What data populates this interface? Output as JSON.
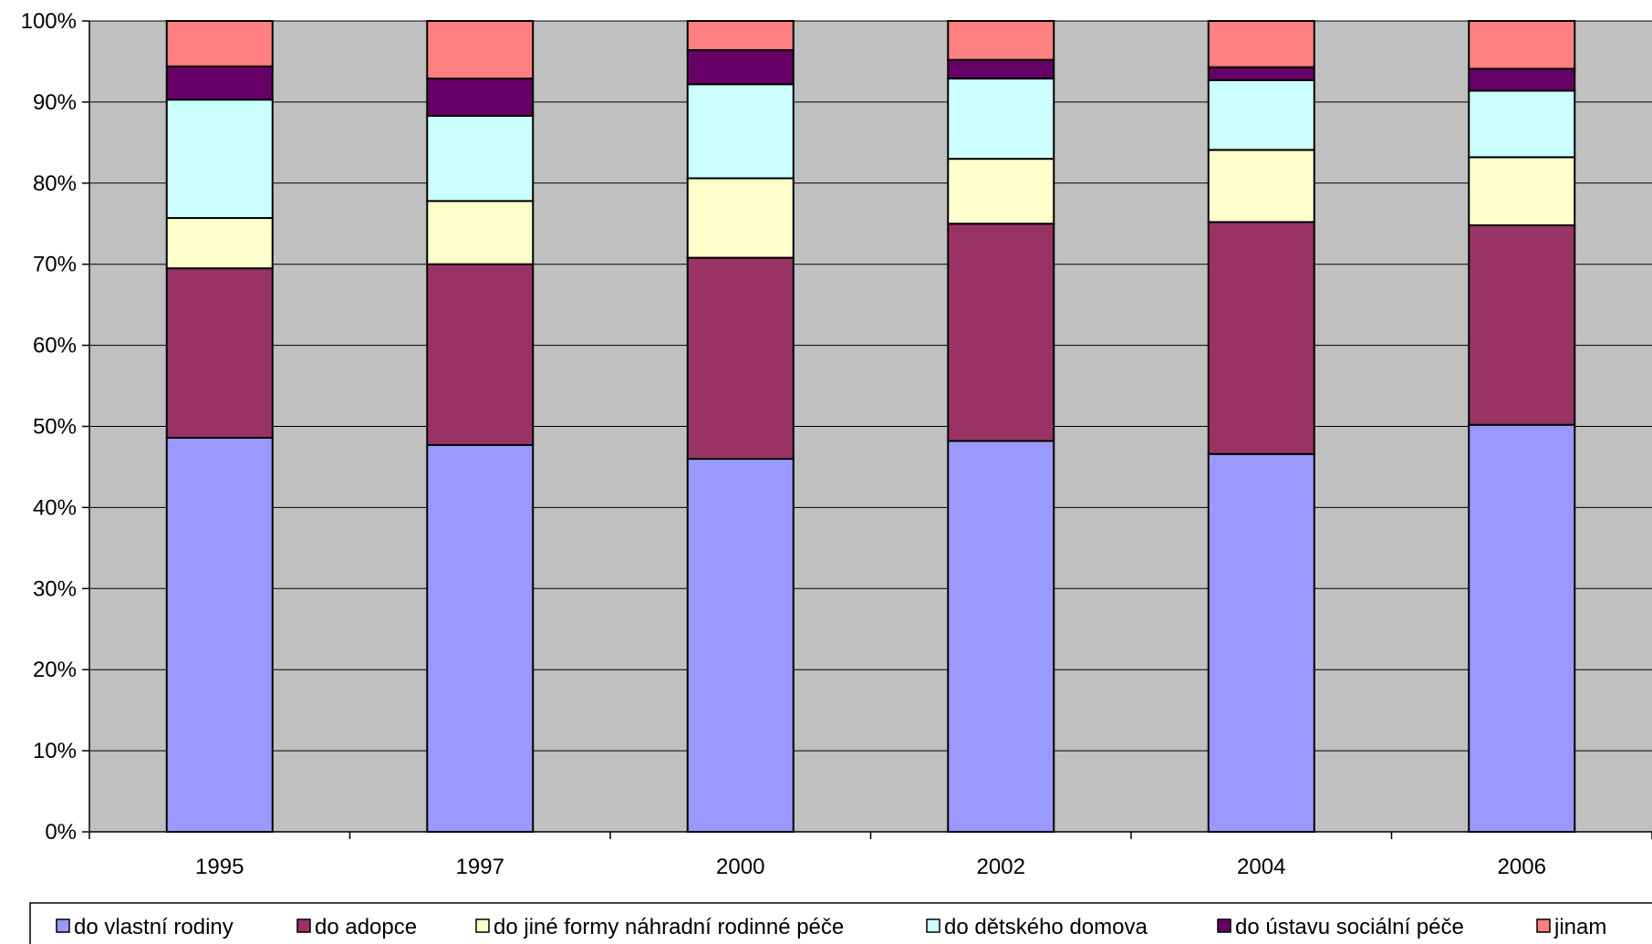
{
  "chart_data": {
    "type": "bar",
    "stacked": "percent",
    "categories": [
      "1995",
      "1997",
      "2000",
      "2002",
      "2004",
      "2006"
    ],
    "y_tick_labels": [
      "0%",
      "10%",
      "20%",
      "30%",
      "40%",
      "50%",
      "60%",
      "70%",
      "80%",
      "90%",
      "100%"
    ],
    "ylim": [
      0,
      100
    ],
    "grid": true,
    "legend_position": "bottom",
    "plot_background": "#C0C0C0",
    "series": [
      {
        "name": "do vlastní rodiny",
        "color": "#9999FF",
        "values": [
          48.6,
          47.7,
          46.0,
          48.2,
          46.6,
          50.2
        ]
      },
      {
        "name": "do adopce",
        "color": "#993366",
        "values": [
          20.9,
          22.3,
          24.8,
          26.8,
          28.6,
          24.6
        ]
      },
      {
        "name": "do jiné formy náhradní rodinné péče",
        "color": "#FFFFCC",
        "values": [
          6.2,
          7.8,
          9.8,
          8.0,
          8.9,
          8.4
        ]
      },
      {
        "name": "do dětského domova",
        "color": "#CCFFFF",
        "values": [
          14.6,
          10.5,
          11.6,
          9.9,
          8.6,
          8.2
        ]
      },
      {
        "name": "do ústavu sociální péče",
        "color": "#660066",
        "values": [
          4.1,
          4.6,
          4.2,
          2.3,
          1.6,
          2.7
        ]
      },
      {
        "name": "jinam",
        "color": "#FF8080",
        "values": [
          5.6,
          7.1,
          3.6,
          4.8,
          5.7,
          5.9
        ]
      }
    ]
  }
}
